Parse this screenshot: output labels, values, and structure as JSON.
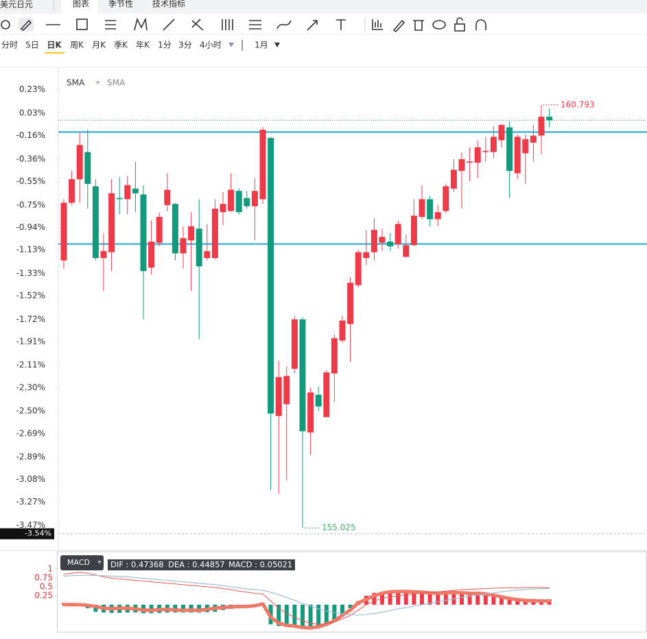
{
  "header": {
    "symbol": "美元日元",
    "tabs": [
      "图表",
      "季节性",
      "技术指标"
    ]
  },
  "periods": {
    "items": [
      "分时",
      "5日",
      "日K",
      "周K",
      "月K",
      "季K",
      "年K",
      "1分",
      "3分",
      "4小时"
    ],
    "extra": "1月"
  },
  "legend": {
    "items": [
      "SMA",
      "SMA"
    ]
  },
  "chart_data": [
    {
      "type": "candlestick",
      "up_color": "#ee3b4a",
      "down_color": "#139a7c",
      "ylim": [
        -3.67,
        0.42
      ],
      "yticks": [
        {
          "value": 0.23,
          "label": "0.23%"
        },
        {
          "value": 0.03,
          "label": "0.03%"
        },
        {
          "value": -0.16,
          "label": "-0.16%"
        },
        {
          "value": -0.36,
          "label": "-0.36%"
        },
        {
          "value": -0.55,
          "label": "-0.55%"
        },
        {
          "value": -0.75,
          "label": "-0.75%"
        },
        {
          "value": -0.94,
          "label": "-0.94%"
        },
        {
          "value": -1.13,
          "label": "-1.13%"
        },
        {
          "value": -1.33,
          "label": "-1.33%"
        },
        {
          "value": -1.52,
          "label": "-1.52%"
        },
        {
          "value": -1.72,
          "label": "-1.72%"
        },
        {
          "value": -1.91,
          "label": "-1.91%"
        },
        {
          "value": -2.11,
          "label": "-2.11%"
        },
        {
          "value": -2.3,
          "label": "-2.30%"
        },
        {
          "value": -2.5,
          "label": "-2.50%"
        },
        {
          "value": -2.69,
          "label": "-2.69%"
        },
        {
          "value": -2.89,
          "label": "-2.89%"
        },
        {
          "value": -3.08,
          "label": "-3.08%"
        },
        {
          "value": -3.27,
          "label": "-3.27%"
        },
        {
          "value": -3.47,
          "label": "-3.47%"
        }
      ],
      "open": [
        -1.22,
        -0.73,
        -0.53,
        -0.3,
        -0.59,
        -1.2,
        -1.15,
        -0.69,
        -0.7,
        -0.61,
        -0.66,
        -1.28,
        -1.07,
        -0.75,
        -0.74,
        -1.16,
        -1.05,
        -0.95,
        -1.2,
        -1.2,
        -0.81,
        -0.8,
        -0.63,
        -0.69,
        -0.76,
        -0.7,
        -0.18,
        -2.54,
        -2.44,
        -2.14,
        -1.72,
        -2.68,
        -2.36,
        -2.55,
        -2.18,
        -1.9,
        -1.76,
        -1.43,
        -1.2,
        -1.15,
        -1.07,
        -1.06,
        -1.08,
        -1.19,
        -1.09,
        -0.85,
        -0.7,
        -0.87,
        -0.8,
        -0.61,
        -0.46,
        -0.39,
        -0.39,
        -0.3,
        -0.3,
        -0.2,
        -0.09,
        -0.48,
        -0.31,
        -0.22,
        -0.16,
        0.0
      ],
      "high": [
        -0.7,
        -0.46,
        -0.14,
        -0.11,
        -0.53,
        -0.99,
        -0.53,
        -0.51,
        -0.5,
        -0.38,
        -0.58,
        -0.88,
        -0.81,
        -0.48,
        -0.73,
        -0.93,
        -0.81,
        -0.7,
        -0.91,
        -0.7,
        -0.64,
        -0.48,
        -0.61,
        -0.63,
        -0.52,
        -0.09,
        -0.17,
        -2.07,
        -2.12,
        -1.69,
        -1.7,
        -2.3,
        -2.29,
        -2.15,
        -1.85,
        -1.69,
        -1.36,
        -1.13,
        -0.96,
        -0.86,
        -0.95,
        -0.99,
        -0.88,
        -1.0,
        -0.7,
        -0.58,
        -0.67,
        -0.75,
        -0.57,
        -0.36,
        -0.3,
        -0.26,
        -0.2,
        -0.17,
        -0.08,
        -0.06,
        -0.04,
        -0.15,
        -0.15,
        -0.07,
        0.1,
        0.07
      ],
      "low": [
        -1.29,
        -0.75,
        -0.73,
        -0.78,
        -1.22,
        -1.48,
        -1.31,
        -0.83,
        -0.83,
        -0.81,
        -1.72,
        -1.34,
        -1.1,
        -0.8,
        -1.22,
        -1.29,
        -1.48,
        -1.89,
        -1.22,
        -1.21,
        -0.92,
        -0.81,
        -0.83,
        -0.78,
        -1.05,
        -0.74,
        -3.17,
        -3.2,
        -3.09,
        -2.18,
        -3.49,
        -2.87,
        -2.5,
        -2.55,
        -2.42,
        -1.92,
        -2.08,
        -1.45,
        -1.26,
        -1.22,
        -1.14,
        -1.14,
        -1.12,
        -1.19,
        -1.1,
        -0.87,
        -0.93,
        -0.93,
        -0.82,
        -0.64,
        -0.78,
        -0.55,
        -0.52,
        -0.38,
        -0.35,
        -0.26,
        -0.69,
        -0.53,
        -0.57,
        -0.38,
        -0.32,
        -0.09
      ],
      "close": [
        -0.73,
        -0.53,
        -0.24,
        -0.57,
        -1.2,
        -1.14,
        -0.65,
        -0.7,
        -0.58,
        -0.65,
        -1.31,
        -1.06,
        -0.85,
        -0.62,
        -1.16,
        -1.03,
        -0.93,
        -1.27,
        -1.14,
        -0.78,
        -0.74,
        -0.62,
        -0.81,
        -0.76,
        -0.63,
        -0.11,
        -2.52,
        -2.21,
        -2.2,
        -1.72,
        -2.67,
        -2.34,
        -2.46,
        -2.17,
        -1.88,
        -1.73,
        -1.41,
        -1.15,
        -1.15,
        -0.96,
        -1.02,
        -1.1,
        -0.91,
        -1.09,
        -0.84,
        -0.7,
        -0.87,
        -0.81,
        -0.59,
        -0.45,
        -0.36,
        -0.38,
        -0.26,
        -0.29,
        -0.17,
        -0.07,
        -0.46,
        -0.17,
        -0.19,
        -0.16,
        0.0,
        -0.03
      ],
      "high_label": "160.793",
      "low_label": "155.025",
      "hlines": [
        {
          "value": -0.13,
          "color": "#1ea3d4"
        },
        {
          "value": -1.08,
          "color": "#1ea3d4"
        }
      ],
      "last_value": -0.03,
      "crosshair": {
        "value": -3.54,
        "label": "-3.54%"
      }
    },
    {
      "type": "macd",
      "up_color": "#ee3b4a",
      "down_color": "#139a7c",
      "label": "MACD",
      "readout": [
        "DIF : 0.47368",
        "DEA : 0.44857",
        "MACD : 0.05021"
      ],
      "ylim": [
        -0.75,
        1.46
      ],
      "yticks": [
        1,
        0.75,
        0.5,
        0.25
      ],
      "values": [
        0.05,
        0.05,
        0.02,
        -0.1,
        -0.2,
        -0.22,
        -0.23,
        -0.23,
        -0.22,
        -0.22,
        -0.24,
        -0.24,
        -0.23,
        -0.22,
        -0.22,
        -0.22,
        -0.22,
        -0.22,
        -0.21,
        -0.2,
        -0.15,
        -0.12,
        -0.1,
        -0.08,
        -0.06,
        -0.02,
        -0.55,
        -0.6,
        -0.62,
        -0.6,
        -0.65,
        -0.65,
        -0.62,
        -0.55,
        -0.45,
        -0.3,
        -0.1,
        0.1,
        0.25,
        0.33,
        0.36,
        0.37,
        0.37,
        0.36,
        0.36,
        0.35,
        0.33,
        0.33,
        0.33,
        0.33,
        0.33,
        0.32,
        0.32,
        0.3,
        0.28,
        0.25,
        0.22,
        0.18,
        0.16,
        0.16,
        0.15,
        0.15
      ],
      "series": [
        {
          "color": "#f07867",
          "width": 5,
          "values": [
            0,
            0,
            0,
            -0.02,
            -0.05,
            -0.1,
            -0.11,
            -0.1,
            -0.1,
            -0.12,
            -0.15,
            -0.16,
            -0.14,
            -0.13,
            -0.15,
            -0.16,
            -0.15,
            -0.16,
            -0.13,
            -0.1,
            -0.08,
            -0.06,
            -0.05,
            -0.05,
            -0.03,
            0.02,
            -0.35,
            -0.52,
            -0.58,
            -0.6,
            -0.64,
            -0.65,
            -0.62,
            -0.55,
            -0.45,
            -0.3,
            -0.15,
            0.05,
            0.15,
            0.25,
            0.32,
            0.36,
            0.37,
            0.37,
            0.36,
            0.35,
            0.33,
            0.32,
            0.33,
            0.34,
            0.33,
            0.32,
            0.32,
            0.3,
            0.27,
            0.22,
            0.17,
            0.14,
            0.12,
            0.11,
            0.1,
            0.1
          ]
        },
        {
          "color": "#e8564f",
          "width": 1,
          "values": [
            0.85,
            0.88,
            0.9,
            0.88,
            0.83,
            0.78,
            0.74,
            0.72,
            0.7,
            0.68,
            0.66,
            0.64,
            0.62,
            0.6,
            0.58,
            0.56,
            0.54,
            0.52,
            0.5,
            0.48,
            0.45,
            0.42,
            0.38,
            0.35,
            0.32,
            0.3,
            0.1,
            -0.1,
            -0.25,
            -0.35,
            -0.45,
            -0.52,
            -0.55,
            -0.53,
            -0.48,
            -0.4,
            -0.3,
            -0.15,
            0,
            0.1,
            0.18,
            0.22,
            0.25,
            0.28,
            0.3,
            0.32,
            0.34,
            0.36,
            0.38,
            0.4,
            0.42,
            0.43,
            0.44,
            0.45,
            0.46,
            0.47,
            0.47,
            0.47,
            0.48,
            0.48,
            0.48,
            0.47
          ]
        },
        {
          "color": "#9dbdd4",
          "width": 1.2,
          "values": [
            0.8,
            0.81,
            0.82,
            0.82,
            0.82,
            0.81,
            0.8,
            0.79,
            0.78,
            0.76,
            0.74,
            0.72,
            0.7,
            0.68,
            0.66,
            0.64,
            0.62,
            0.6,
            0.58,
            0.56,
            0.53,
            0.5,
            0.47,
            0.44,
            0.42,
            0.4,
            0.35,
            0.28,
            0.2,
            0.12,
            0.04,
            -0.04,
            -0.12,
            -0.18,
            -0.22,
            -0.26,
            -0.28,
            -0.29,
            -0.28,
            -0.25,
            -0.21,
            -0.16,
            -0.12,
            -0.08,
            -0.04,
            0,
            0.04,
            0.08,
            0.12,
            0.16,
            0.2,
            0.24,
            0.27,
            0.3,
            0.33,
            0.36,
            0.39,
            0.41,
            0.43,
            0.44,
            0.45,
            0.45
          ]
        }
      ]
    }
  ]
}
